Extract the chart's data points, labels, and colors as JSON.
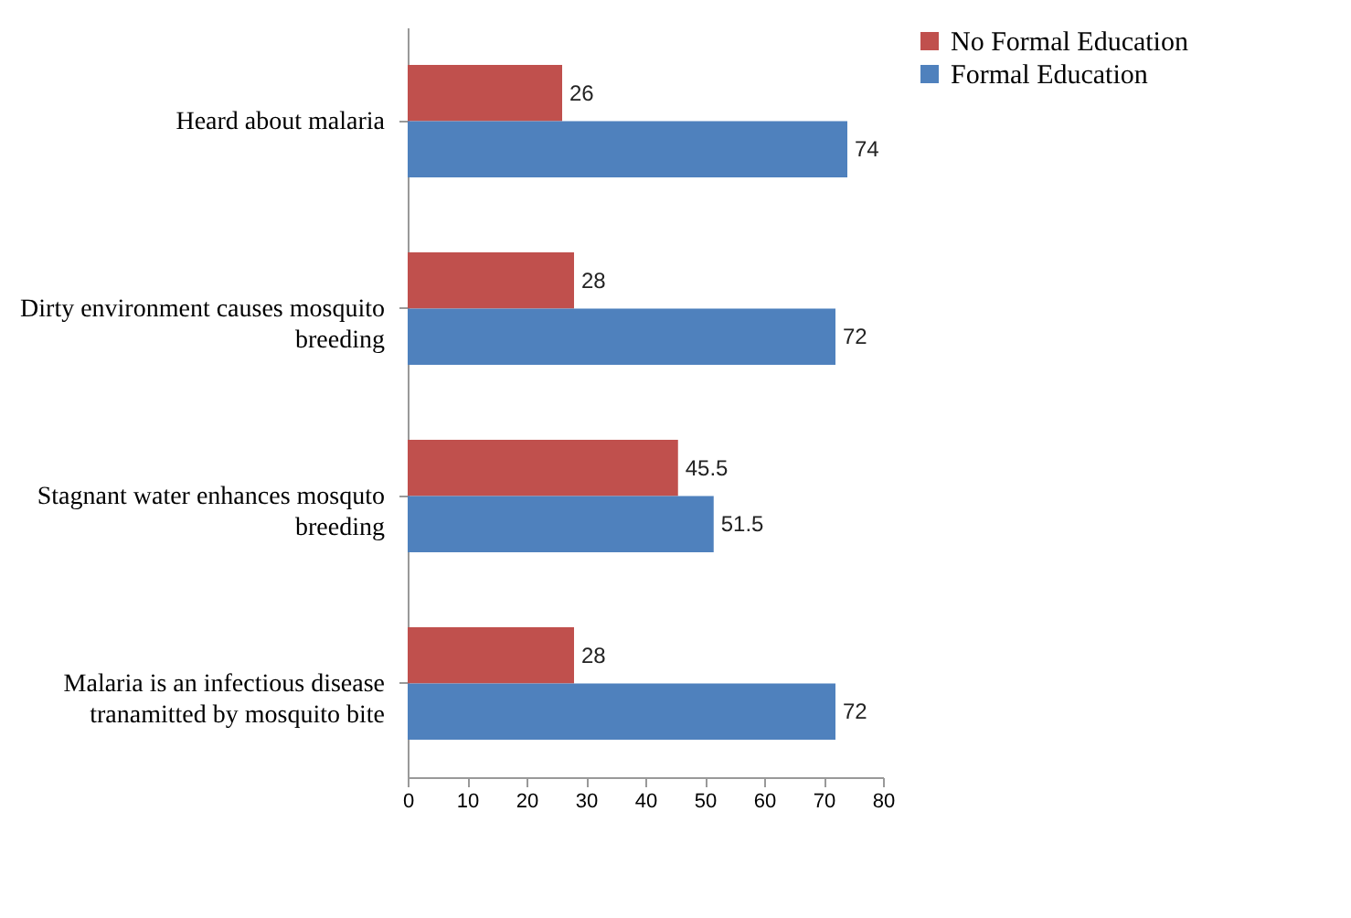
{
  "chart_data": {
    "type": "bar",
    "orientation": "horizontal",
    "categories": [
      "Heard about malaria",
      "Dirty environment causes mosquito breeding",
      "Stagnant water enhances mosquto breeding",
      "Malaria is an infectious disease tranamitted by mosquito bite"
    ],
    "series": [
      {
        "name": "No Formal Education",
        "color": "#c0504d",
        "values": [
          26,
          28,
          45.5,
          28
        ]
      },
      {
        "name": "Formal Education",
        "color": "#4f81bd",
        "values": [
          74,
          72,
          51.5,
          72
        ]
      }
    ],
    "xlim": [
      0,
      80
    ],
    "xticks": [
      0,
      10,
      20,
      30,
      40,
      50,
      60,
      70,
      80
    ],
    "data_labels": true,
    "legend": "right",
    "grid": false
  }
}
